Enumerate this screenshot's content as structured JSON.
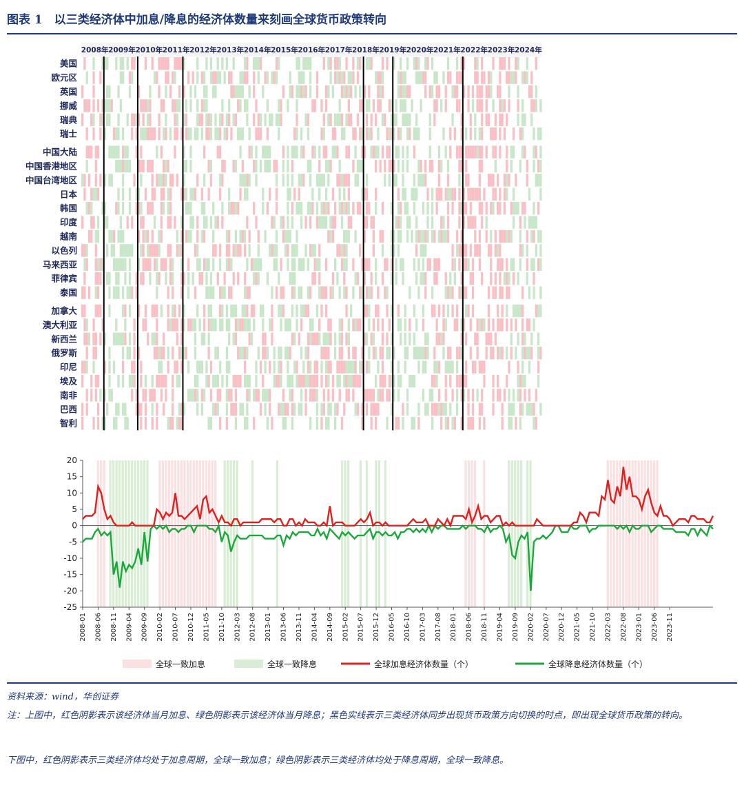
{
  "title": "图表 1　以三类经济体中加息/降息的经济体数量来刻画全球货币政策转向",
  "source": "资料来源：wind，华创证券",
  "note_lines": [
    "注：上图中，红色阴影表示该经济体当月加息、绿色阴影表示该经济体当月降息；黑色实线表示三类经济体同步出现货币政策方向切换的时点，即出现全球货币政策的转向。",
    "下图中，红色阴影表示三类经济体均处于加息周期，全球一致加息；绿色阴影表示三类经济体均处于降息周期，全球一致降息。"
  ],
  "colors": {
    "hike": "#f8c0c4",
    "cut": "#c8e6c8",
    "hike_line": "#e0201c",
    "cut_line": "#1aa83a",
    "hike_band": "#fbe0e2",
    "cut_band": "#d9ecd4",
    "title": "#1f3a7a"
  },
  "chart_data": [
    {
      "type": "heatmap",
      "years": [
        "2008年",
        "2009年",
        "2010年",
        "2011年",
        "2012年",
        "2013年",
        "2014年",
        "2015年",
        "2016年",
        "2017年",
        "2018年",
        "2019年",
        "2020年",
        "2021年",
        "2022年",
        "2023年",
        "2024年"
      ],
      "groups": [
        [
          "美国",
          "欧元区",
          "英国",
          "挪威",
          "瑞典",
          "瑞士"
        ],
        [
          "中国大陆",
          "中国香港地区",
          "中国台湾地区",
          "日本",
          "韩国",
          "印度",
          "越南",
          "以色列",
          "马来西亚",
          "菲律宾",
          "泰国"
        ],
        [
          "加拿大",
          "澳大利亚",
          "新西兰",
          "俄罗斯",
          "印尼",
          "埃及",
          "南非",
          "巴西",
          "智利"
        ]
      ],
      "turning_points": [
        "2008-10",
        "2010-01",
        "2011-09",
        "2018-05",
        "2019-06",
        "2022-01"
      ],
      "cell_values": "each month per economy: 1 = rate hike (red cell), -1 = rate cut (green cell), 0 = no change; monthly pattern reproduced by the drawing script"
    },
    {
      "type": "line",
      "ylim": [
        -25,
        20
      ],
      "yticks": [
        20,
        15,
        10,
        5,
        0,
        -5,
        -10,
        -15,
        -20,
        -25
      ],
      "xticks": [
        "2008-01",
        "2008-06",
        "2008-11",
        "2009-04",
        "2009-09",
        "2010-02",
        "2010-07",
        "2010-12",
        "2011-05",
        "2011-10",
        "2012-03",
        "2012-08",
        "2013-01",
        "2013-06",
        "2013-11",
        "2014-04",
        "2014-09",
        "2015-02",
        "2015-07",
        "2015-12",
        "2016-05",
        "2016-10",
        "2017-03",
        "2017-08",
        "2018-01",
        "2018-06",
        "2018-11",
        "2019-04",
        "2019-09",
        "2020-02",
        "2020-07",
        "2020-12",
        "2021-05",
        "2021-10",
        "2022-03",
        "2022-08",
        "2023-01",
        "2023-06",
        "2023-11"
      ],
      "legend": [
        "全球一致加息",
        "全球一致降息",
        "全球加息经济体数量（个）",
        "全球降息经济体数量（个）"
      ],
      "hike_bands": [
        [
          "2008-06",
          "2008-08"
        ],
        [
          "2010-02",
          "2011-08"
        ],
        [
          "2018-05",
          "2018-08"
        ],
        [
          "2018-11",
          "2018-11"
        ],
        [
          "2022-03",
          "2023-07"
        ]
      ],
      "cut_bands": [
        [
          "2008-10",
          "2009-10"
        ],
        [
          "2011-11",
          "2012-03"
        ],
        [
          "2012-08",
          "2012-08"
        ],
        [
          "2013-04",
          "2013-04"
        ],
        [
          "2015-01",
          "2015-03"
        ],
        [
          "2015-07",
          "2015-07"
        ],
        [
          "2015-09",
          "2015-09"
        ],
        [
          "2015-12",
          "2016-01"
        ],
        [
          "2016-03",
          "2016-03"
        ],
        [
          "2019-07",
          "2019-11"
        ],
        [
          "2020-01",
          "2020-02"
        ]
      ],
      "key_points": {
        "hikes": [
          [
            "2008-01",
            2
          ],
          [
            "2008-03",
            3
          ],
          [
            "2008-05",
            4
          ],
          [
            "2008-06",
            12
          ],
          [
            "2008-07",
            10
          ],
          [
            "2008-08",
            5
          ],
          [
            "2008-09",
            2
          ],
          [
            "2008-12",
            0
          ],
          [
            "2010-03",
            2
          ],
          [
            "2010-06",
            4
          ],
          [
            "2010-07",
            10
          ],
          [
            "2010-08",
            3
          ],
          [
            "2011-02",
            6
          ],
          [
            "2011-04",
            8
          ],
          [
            "2011-05",
            9
          ],
          [
            "2011-07",
            5
          ],
          [
            "2011-09",
            1
          ],
          [
            "2014-09",
            6
          ],
          [
            "2015-10",
            4
          ],
          [
            "2018-06",
            5
          ],
          [
            "2018-09",
            6
          ],
          [
            "2018-11",
            3
          ],
          [
            "2021-10",
            4
          ],
          [
            "2022-02",
            8
          ],
          [
            "2022-03",
            14
          ],
          [
            "2022-06",
            12
          ],
          [
            "2022-08",
            18
          ],
          [
            "2022-09",
            11
          ],
          [
            "2022-10",
            15
          ],
          [
            "2022-12",
            9
          ],
          [
            "2023-02",
            5
          ],
          [
            "2023-04",
            11
          ],
          [
            "2023-06",
            4
          ],
          [
            "2023-08",
            6
          ],
          [
            "2023-12",
            0
          ],
          [
            "2024-01",
            1
          ]
        ],
        "cuts": [
          [
            "2008-01",
            -5
          ],
          [
            "2008-06",
            -1
          ],
          [
            "2008-10",
            -2
          ],
          [
            "2008-11",
            -15
          ],
          [
            "2008-12",
            -11
          ],
          [
            "2009-01",
            -19
          ],
          [
            "2009-03",
            -14
          ],
          [
            "2009-05",
            -13
          ],
          [
            "2009-07",
            -7
          ],
          [
            "2009-09",
            -2
          ],
          [
            "2009-11",
            -1
          ],
          [
            "2012-01",
            -8
          ],
          [
            "2013-06",
            -6
          ],
          [
            "2019-08",
            -9
          ],
          [
            "2019-09",
            -10
          ],
          [
            "2020-01",
            -2
          ],
          [
            "2020-02",
            -20
          ],
          [
            "2020-03",
            -5
          ],
          [
            "2021-06",
            0
          ],
          [
            "2024-01",
            -2
          ]
        ]
      }
    }
  ]
}
